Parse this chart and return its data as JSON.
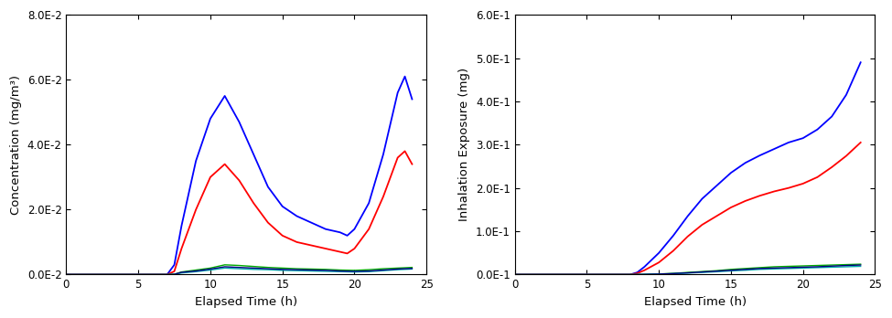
{
  "left_ylabel": "Concentration (mg/m³)",
  "right_ylabel": "Inhalation Exposure (mg)",
  "xlabel": "Elapsed Time (h)",
  "left_ylim": [
    0.0,
    0.08
  ],
  "right_ylim": [
    0.0,
    0.6
  ],
  "xlim": [
    0,
    25
  ],
  "left_yticks": [
    0.0,
    0.02,
    0.04,
    0.06,
    0.08
  ],
  "right_yticks": [
    0.0,
    0.1,
    0.2,
    0.3,
    0.4,
    0.5,
    0.6
  ],
  "xticks": [
    0,
    5,
    10,
    15,
    20,
    25
  ],
  "left_ytick_labels": [
    "0.0E-2",
    "2.0E-2",
    "4.0E-2",
    "6.0E-2",
    "8.0E-2"
  ],
  "right_ytick_labels": [
    "0.0E-1",
    "1.0E-1",
    "2.0E-1",
    "3.0E-1",
    "4.0E-1",
    "5.0E-1",
    "6.0E-1"
  ],
  "conc_blue_x": [
    0,
    7,
    7.5,
    8,
    9,
    10,
    11,
    12,
    13,
    14,
    15,
    16,
    17,
    18,
    19,
    19.5,
    20,
    21,
    22,
    23,
    23.5,
    24
  ],
  "conc_blue_y": [
    0,
    0,
    0.003,
    0.015,
    0.035,
    0.048,
    0.055,
    0.047,
    0.037,
    0.027,
    0.021,
    0.018,
    0.016,
    0.014,
    0.013,
    0.012,
    0.014,
    0.022,
    0.037,
    0.056,
    0.061,
    0.054
  ],
  "conc_red_x": [
    0,
    7,
    7.5,
    8,
    9,
    10,
    11,
    12,
    13,
    14,
    15,
    16,
    17,
    18,
    19,
    19.5,
    20,
    21,
    22,
    23,
    23.5,
    24
  ],
  "conc_red_y": [
    0,
    0,
    0.001,
    0.008,
    0.02,
    0.03,
    0.034,
    0.029,
    0.022,
    0.016,
    0.012,
    0.01,
    0.009,
    0.008,
    0.007,
    0.0065,
    0.008,
    0.014,
    0.024,
    0.036,
    0.038,
    0.034
  ],
  "conc_green_x": [
    0,
    7,
    7.5,
    8,
    9,
    10,
    11,
    12,
    13,
    14,
    15,
    16,
    17,
    18,
    19,
    20,
    21,
    22,
    23,
    24
  ],
  "conc_green_y": [
    0,
    0,
    0.0001,
    0.0008,
    0.0014,
    0.002,
    0.003,
    0.0028,
    0.0025,
    0.0022,
    0.002,
    0.0018,
    0.0017,
    0.0016,
    0.0014,
    0.0013,
    0.0015,
    0.0018,
    0.002,
    0.0022
  ],
  "conc_cyan_x": [
    0,
    7,
    7.5,
    8,
    9,
    10,
    11,
    12,
    13,
    14,
    15,
    16,
    17,
    18,
    19,
    20,
    21,
    22,
    23,
    24
  ],
  "conc_cyan_y": [
    0,
    0,
    5e-05,
    0.0005,
    0.0009,
    0.0014,
    0.002,
    0.0018,
    0.0016,
    0.0015,
    0.0013,
    0.0012,
    0.0011,
    0.001,
    0.0009,
    0.0008,
    0.0009,
    0.0012,
    0.0015,
    0.0017
  ],
  "conc_navy_x": [
    0,
    7,
    7.5,
    8,
    9,
    10,
    11,
    12,
    13,
    14,
    15,
    16,
    17,
    18,
    19,
    20,
    21,
    22,
    23,
    24
  ],
  "conc_navy_y": [
    0,
    0,
    8e-05,
    0.0007,
    0.0011,
    0.0017,
    0.0024,
    0.0022,
    0.002,
    0.0018,
    0.0016,
    0.0015,
    0.0014,
    0.0013,
    0.0011,
    0.001,
    0.0011,
    0.0014,
    0.0017,
    0.0019
  ],
  "exp_blue_x": [
    0,
    8,
    8.5,
    9,
    10,
    11,
    12,
    13,
    14,
    15,
    16,
    17,
    18,
    19,
    20,
    21,
    22,
    23,
    24
  ],
  "exp_blue_y": [
    0,
    0,
    0.005,
    0.018,
    0.05,
    0.09,
    0.135,
    0.175,
    0.205,
    0.235,
    0.258,
    0.275,
    0.29,
    0.305,
    0.315,
    0.335,
    0.365,
    0.415,
    0.49
  ],
  "exp_red_x": [
    0,
    8,
    8.5,
    9,
    10,
    11,
    12,
    13,
    14,
    15,
    16,
    17,
    18,
    19,
    20,
    21,
    22,
    23,
    24
  ],
  "exp_red_y": [
    0,
    0,
    0.003,
    0.01,
    0.028,
    0.055,
    0.088,
    0.115,
    0.135,
    0.155,
    0.17,
    0.182,
    0.192,
    0.2,
    0.21,
    0.225,
    0.248,
    0.274,
    0.305
  ],
  "exp_green_x": [
    0,
    8,
    8.5,
    9,
    10,
    11,
    12,
    13,
    14,
    15,
    16,
    17,
    18,
    19,
    20,
    21,
    22,
    23,
    24
  ],
  "exp_green_y": [
    0,
    0,
    0.0002,
    0.0006,
    0.0014,
    0.0028,
    0.005,
    0.007,
    0.009,
    0.012,
    0.014,
    0.016,
    0.018,
    0.019,
    0.02,
    0.021,
    0.022,
    0.023,
    0.024
  ],
  "exp_cyan_x": [
    0,
    8,
    8.5,
    9,
    10,
    11,
    12,
    13,
    14,
    15,
    16,
    17,
    18,
    19,
    20,
    21,
    22,
    23,
    24
  ],
  "exp_cyan_y": [
    0,
    0,
    0.00015,
    0.0004,
    0.001,
    0.002,
    0.0034,
    0.005,
    0.0065,
    0.0085,
    0.01,
    0.012,
    0.013,
    0.014,
    0.015,
    0.016,
    0.017,
    0.018,
    0.019
  ],
  "exp_navy_x": [
    0,
    8,
    8.5,
    9,
    10,
    11,
    12,
    13,
    14,
    15,
    16,
    17,
    18,
    19,
    20,
    21,
    22,
    23,
    24
  ],
  "exp_navy_y": [
    0,
    0,
    0.0002,
    0.0005,
    0.0012,
    0.0024,
    0.004,
    0.006,
    0.008,
    0.01,
    0.012,
    0.014,
    0.015,
    0.016,
    0.017,
    0.018,
    0.0195,
    0.021,
    0.022
  ],
  "colors": {
    "blue": "#0000FF",
    "red": "#FF0000",
    "green": "#00AA00",
    "cyan": "#00AAAA",
    "navy": "#000080"
  },
  "bg_color": "#FFFFFF",
  "tick_fontsize": 8.5,
  "label_fontsize": 9.5
}
